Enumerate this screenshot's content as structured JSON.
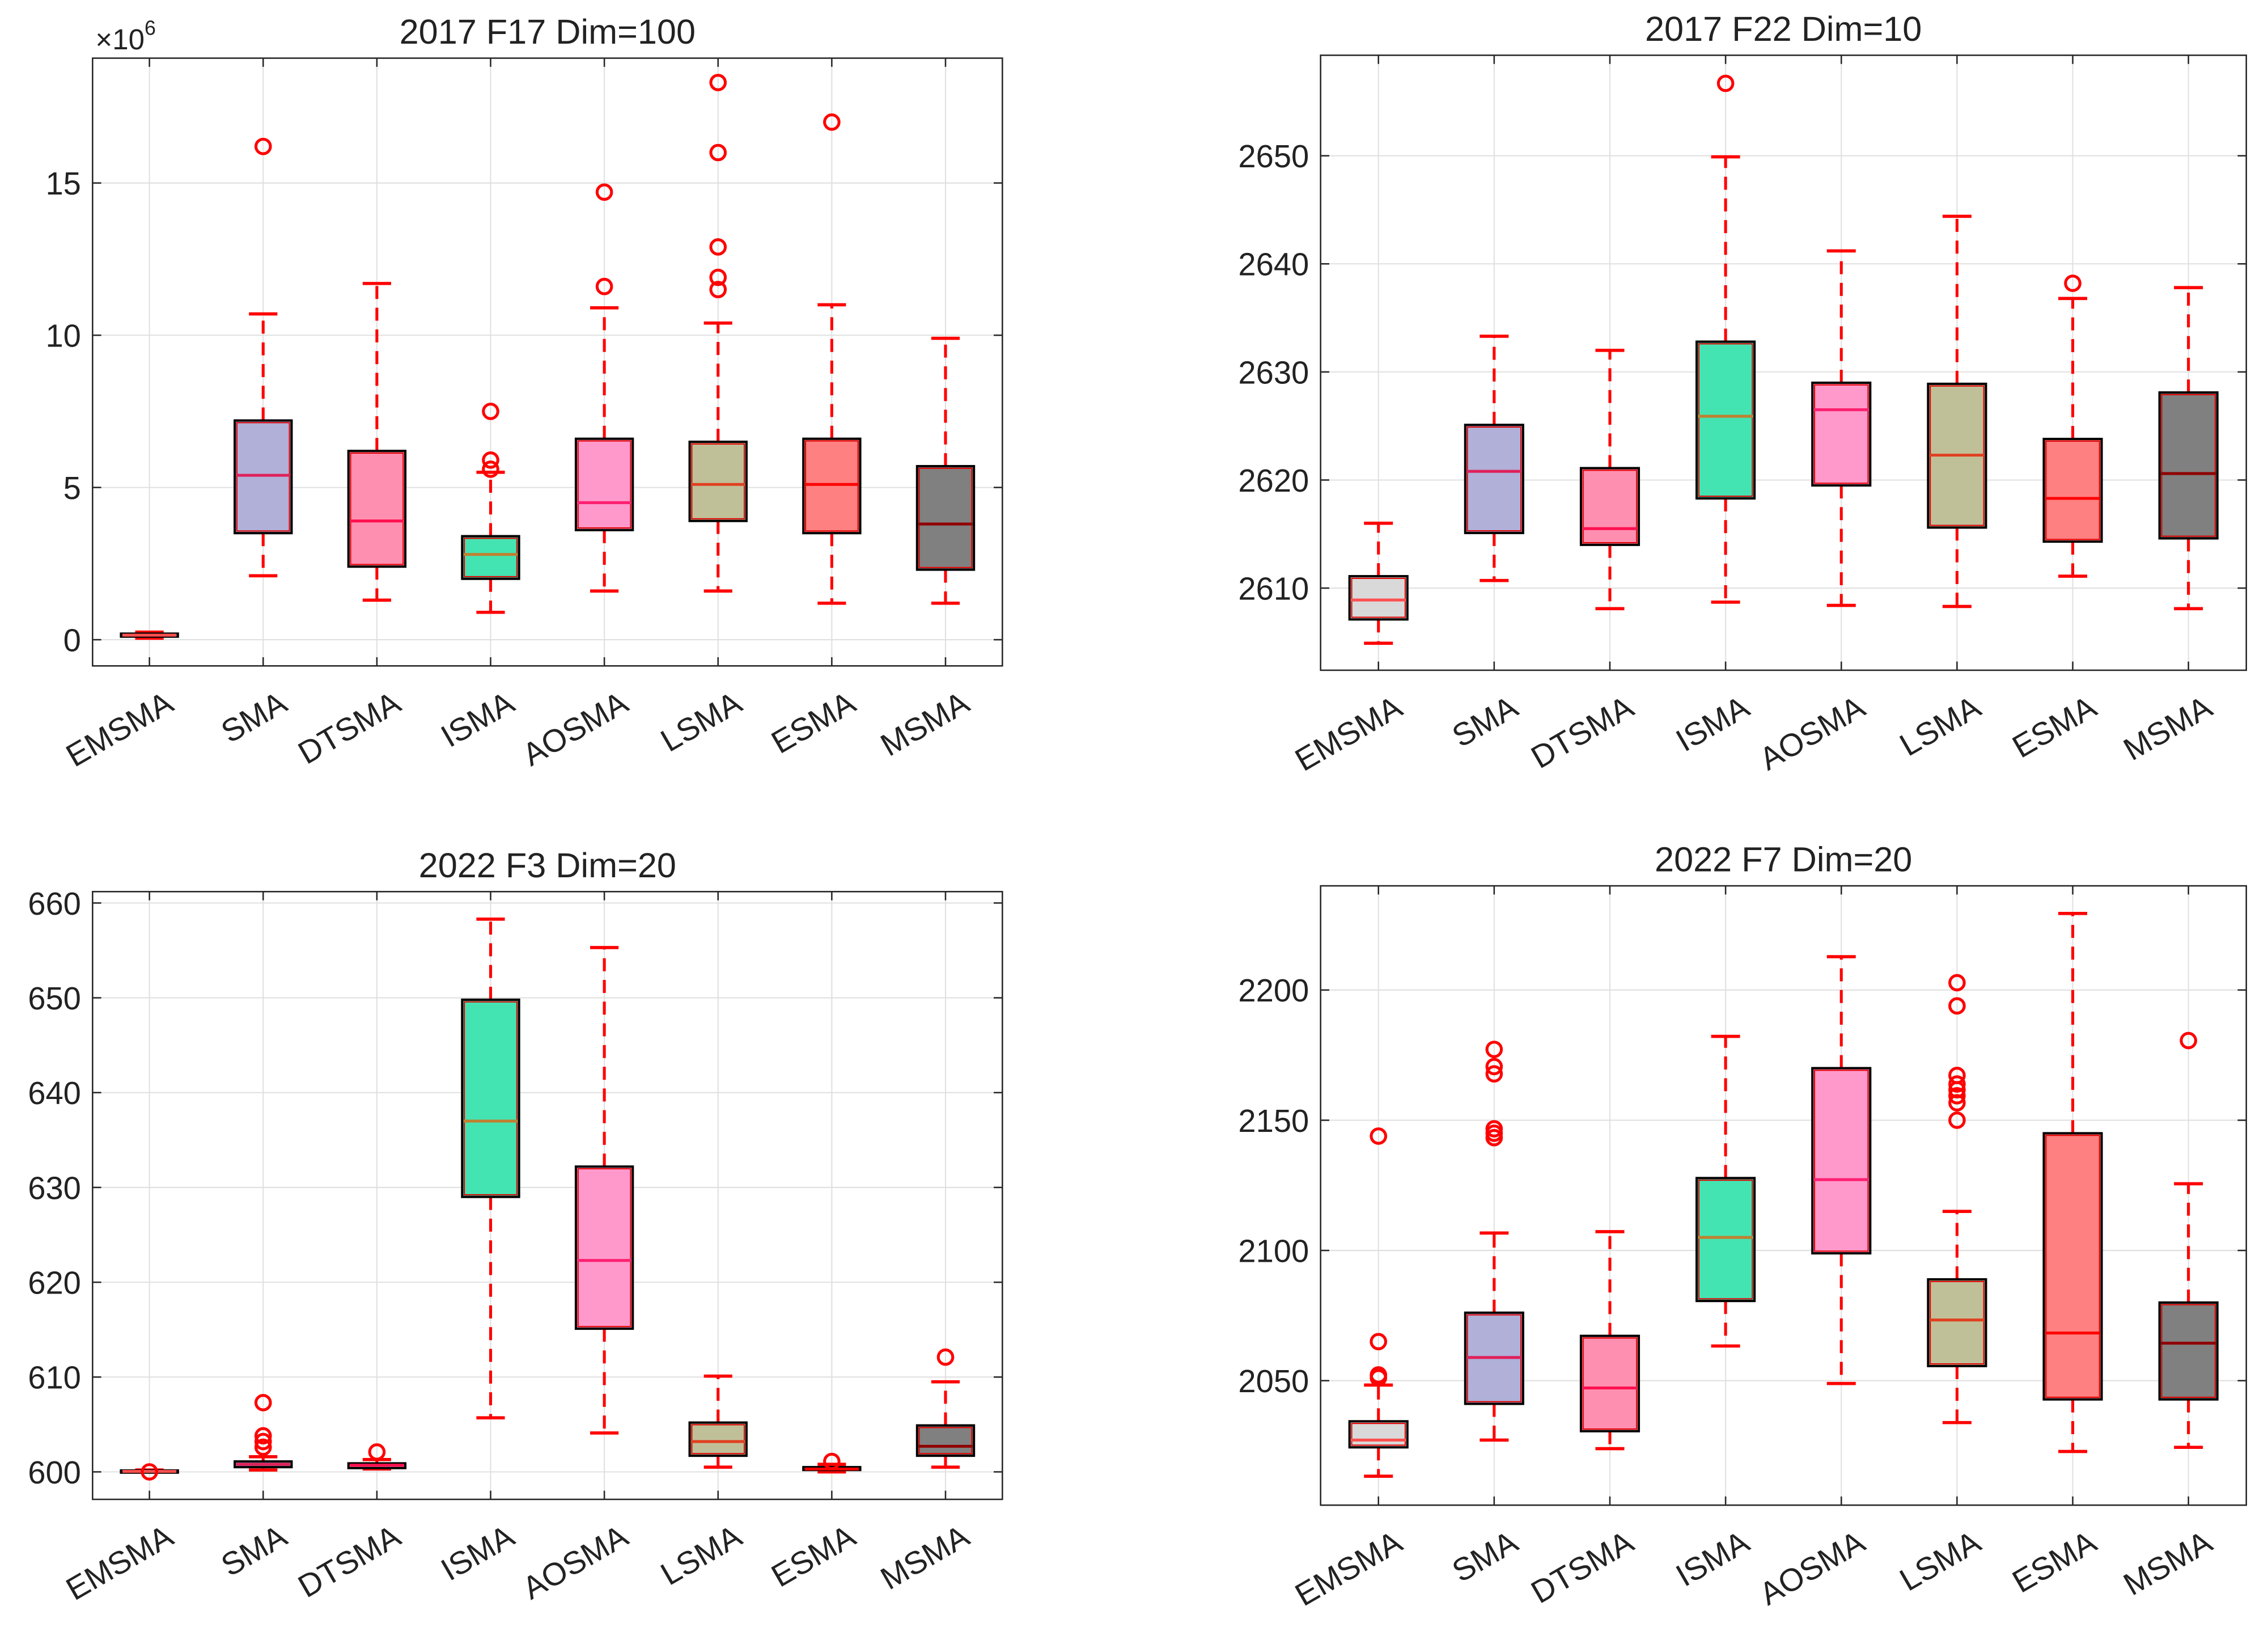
{
  "chart_data": [
    {
      "type": "box",
      "title": "2017 F17 Dim=100",
      "exponent_label": "×10",
      "exponent_power": "6",
      "categories": [
        "EMSMA",
        "SMA",
        "DTSMA",
        "ISMA",
        "AOSMA",
        "LSMA",
        "ESMA",
        "MSMA"
      ],
      "ylim": [
        -0.86,
        19.1
      ],
      "yticks": [
        0,
        5,
        10,
        15
      ],
      "grid": true,
      "boxes": [
        {
          "q1": 0.1,
          "median": 0.15,
          "q3": 0.2,
          "whisker_low": 0.05,
          "whisker_high": 0.25,
          "outliers": []
        },
        {
          "q1": 3.5,
          "median": 5.4,
          "q3": 7.2,
          "whisker_low": 2.1,
          "whisker_high": 10.7,
          "outliers": [
            16.2
          ]
        },
        {
          "q1": 2.4,
          "median": 3.9,
          "q3": 6.2,
          "whisker_low": 1.3,
          "whisker_high": 11.7,
          "outliers": []
        },
        {
          "q1": 2.0,
          "median": 2.8,
          "q3": 3.4,
          "whisker_low": 0.9,
          "whisker_high": 5.5,
          "outliers": [
            7.5,
            5.9,
            5.6
          ]
        },
        {
          "q1": 3.6,
          "median": 4.5,
          "q3": 6.6,
          "whisker_low": 1.6,
          "whisker_high": 10.9,
          "outliers": [
            14.7,
            11.6
          ]
        },
        {
          "q1": 3.9,
          "median": 5.1,
          "q3": 6.5,
          "whisker_low": 1.6,
          "whisker_high": 10.4,
          "outliers": [
            18.3,
            16.0,
            12.9,
            11.9,
            11.5
          ]
        },
        {
          "q1": 3.5,
          "median": 5.1,
          "q3": 6.6,
          "whisker_low": 1.2,
          "whisker_high": 11.0,
          "outliers": [
            17.0
          ]
        },
        {
          "q1": 2.3,
          "median": 3.8,
          "q3": 5.7,
          "whisker_low": 1.2,
          "whisker_high": 9.9,
          "outliers": []
        }
      ]
    },
    {
      "type": "box",
      "title": "2017 F22 Dim=10",
      "categories": [
        "EMSMA",
        "SMA",
        "DTSMA",
        "ISMA",
        "AOSMA",
        "LSMA",
        "ESMA",
        "MSMA"
      ],
      "ylim": [
        2602.4,
        2659.3
      ],
      "yticks": [
        2610,
        2620,
        2630,
        2640,
        2650
      ],
      "grid": true,
      "boxes": [
        {
          "q1": 2607.1,
          "median": 2608.9,
          "q3": 2611.1,
          "whisker_low": 2604.9,
          "whisker_high": 2616.0,
          "outliers": []
        },
        {
          "q1": 2615.1,
          "median": 2620.8,
          "q3": 2625.1,
          "whisker_low": 2610.7,
          "whisker_high": 2633.3,
          "outliers": []
        },
        {
          "q1": 2614.0,
          "median": 2615.5,
          "q3": 2621.1,
          "whisker_low": 2608.1,
          "whisker_high": 2632.0,
          "outliers": []
        },
        {
          "q1": 2618.3,
          "median": 2625.9,
          "q3": 2632.8,
          "whisker_low": 2608.7,
          "whisker_high": 2649.9,
          "outliers": [
            2656.7
          ]
        },
        {
          "q1": 2619.5,
          "median": 2626.5,
          "q3": 2629.0,
          "whisker_low": 2608.4,
          "whisker_high": 2641.2,
          "outliers": []
        },
        {
          "q1": 2615.6,
          "median": 2622.3,
          "q3": 2628.9,
          "whisker_low": 2608.3,
          "whisker_high": 2644.4,
          "outliers": []
        },
        {
          "q1": 2614.3,
          "median": 2618.3,
          "q3": 2623.8,
          "whisker_low": 2611.1,
          "whisker_high": 2636.8,
          "outliers": [
            2638.2
          ]
        },
        {
          "q1": 2614.6,
          "median": 2620.6,
          "q3": 2628.1,
          "whisker_low": 2608.1,
          "whisker_high": 2637.8,
          "outliers": []
        }
      ]
    },
    {
      "type": "box",
      "title": "2022 F3 Dim=20",
      "categories": [
        "EMSMA",
        "SMA",
        "DTSMA",
        "ISMA",
        "AOSMA",
        "LSMA",
        "ESMA",
        "MSMA"
      ],
      "ylim": [
        597.1,
        661.2
      ],
      "yticks": [
        600,
        610,
        620,
        630,
        640,
        650,
        660
      ],
      "grid": true,
      "boxes": [
        {
          "q1": 600.0,
          "median": 600.05,
          "q3": 600.15,
          "whisker_low": 600.0,
          "whisker_high": 600.2,
          "outliers": [
            600.0
          ]
        },
        {
          "q1": 600.5,
          "median": 600.8,
          "q3": 601.1,
          "whisker_low": 600.2,
          "whisker_high": 601.6,
          "outliers": [
            607.3,
            603.8,
            603.2,
            602.6
          ]
        },
        {
          "q1": 600.4,
          "median": 600.7,
          "q3": 600.9,
          "whisker_low": 600.3,
          "whisker_high": 601.3,
          "outliers": [
            602.1
          ]
        },
        {
          "q1": 629.0,
          "median": 637.0,
          "q3": 649.8,
          "whisker_low": 605.7,
          "whisker_high": 658.3,
          "outliers": []
        },
        {
          "q1": 615.1,
          "median": 622.3,
          "q3": 632.2,
          "whisker_low": 604.1,
          "whisker_high": 655.3,
          "outliers": []
        },
        {
          "q1": 601.7,
          "median": 603.2,
          "q3": 605.2,
          "whisker_low": 600.5,
          "whisker_high": 610.1,
          "outliers": []
        },
        {
          "q1": 600.2,
          "median": 600.3,
          "q3": 600.5,
          "whisker_low": 600.0,
          "whisker_high": 600.8,
          "outliers": [
            601.1
          ]
        },
        {
          "q1": 601.7,
          "median": 602.7,
          "q3": 604.9,
          "whisker_low": 600.5,
          "whisker_high": 609.5,
          "outliers": [
            612.1
          ]
        }
      ]
    },
    {
      "type": "box",
      "title": "2022 F7 Dim=20",
      "categories": [
        "EMSMA",
        "SMA",
        "DTSMA",
        "ISMA",
        "AOSMA",
        "LSMA",
        "ESMA",
        "MSMA"
      ],
      "ylim": [
        2002.2,
        2240
      ],
      "yticks": [
        2050,
        2100,
        2150,
        2200
      ],
      "grid": true,
      "boxes": [
        {
          "q1": 2024.4,
          "median": 2027.2,
          "q3": 2034.4,
          "whisker_low": 2013.3,
          "whisker_high": 2048.3,
          "outliers": [
            2143.9,
            2065.0,
            2052.2,
            2051.1
          ]
        },
        {
          "q1": 2041.1,
          "median": 2058.9,
          "q3": 2076.1,
          "whisker_low": 2027.2,
          "whisker_high": 2106.7,
          "outliers": [
            2177.2,
            2170.6,
            2167.8,
            2146.7,
            2145.0,
            2143.3
          ]
        },
        {
          "q1": 2030.6,
          "median": 2047.2,
          "q3": 2067.2,
          "whisker_low": 2023.9,
          "whisker_high": 2107.2,
          "outliers": []
        },
        {
          "q1": 2080.6,
          "median": 2105.0,
          "q3": 2127.8,
          "whisker_low": 2063.3,
          "whisker_high": 2182.2,
          "outliers": []
        },
        {
          "q1": 2098.9,
          "median": 2127.2,
          "q3": 2170.0,
          "whisker_low": 2048.9,
          "whisker_high": 2212.8,
          "outliers": []
        },
        {
          "q1": 2055.6,
          "median": 2073.3,
          "q3": 2088.9,
          "whisker_low": 2033.9,
          "whisker_high": 2115.0,
          "outliers": [
            2202.8,
            2193.9,
            2167.2,
            2163.9,
            2161.7,
            2159.4,
            2156.7,
            2150.0
          ]
        },
        {
          "q1": 2042.8,
          "median": 2068.3,
          "q3": 2145.0,
          "whisker_low": 2022.8,
          "whisker_high": 2229.4,
          "outliers": []
        },
        {
          "q1": 2042.8,
          "median": 2064.4,
          "q3": 2080.0,
          "whisker_low": 2024.4,
          "whisker_high": 2125.6,
          "outliers": [
            2180.6
          ]
        }
      ]
    }
  ],
  "colors": {
    "box_fills": [
      "#d9d9d9",
      "#b0b0d8",
      "#ff8fb0",
      "#44e4b2",
      "#ff99cc",
      "#c0c098",
      "#ff8080",
      "#808080"
    ],
    "medians": [
      "#ff5050",
      "#e0205a",
      "#ff1050",
      "#c08030",
      "#ff2070",
      "#e04020",
      "#ff0000",
      "#900000"
    ],
    "whisker": "#ff0000",
    "outlier": "#ff0000",
    "grid": "#e0e0e0",
    "axis": "#262626"
  }
}
